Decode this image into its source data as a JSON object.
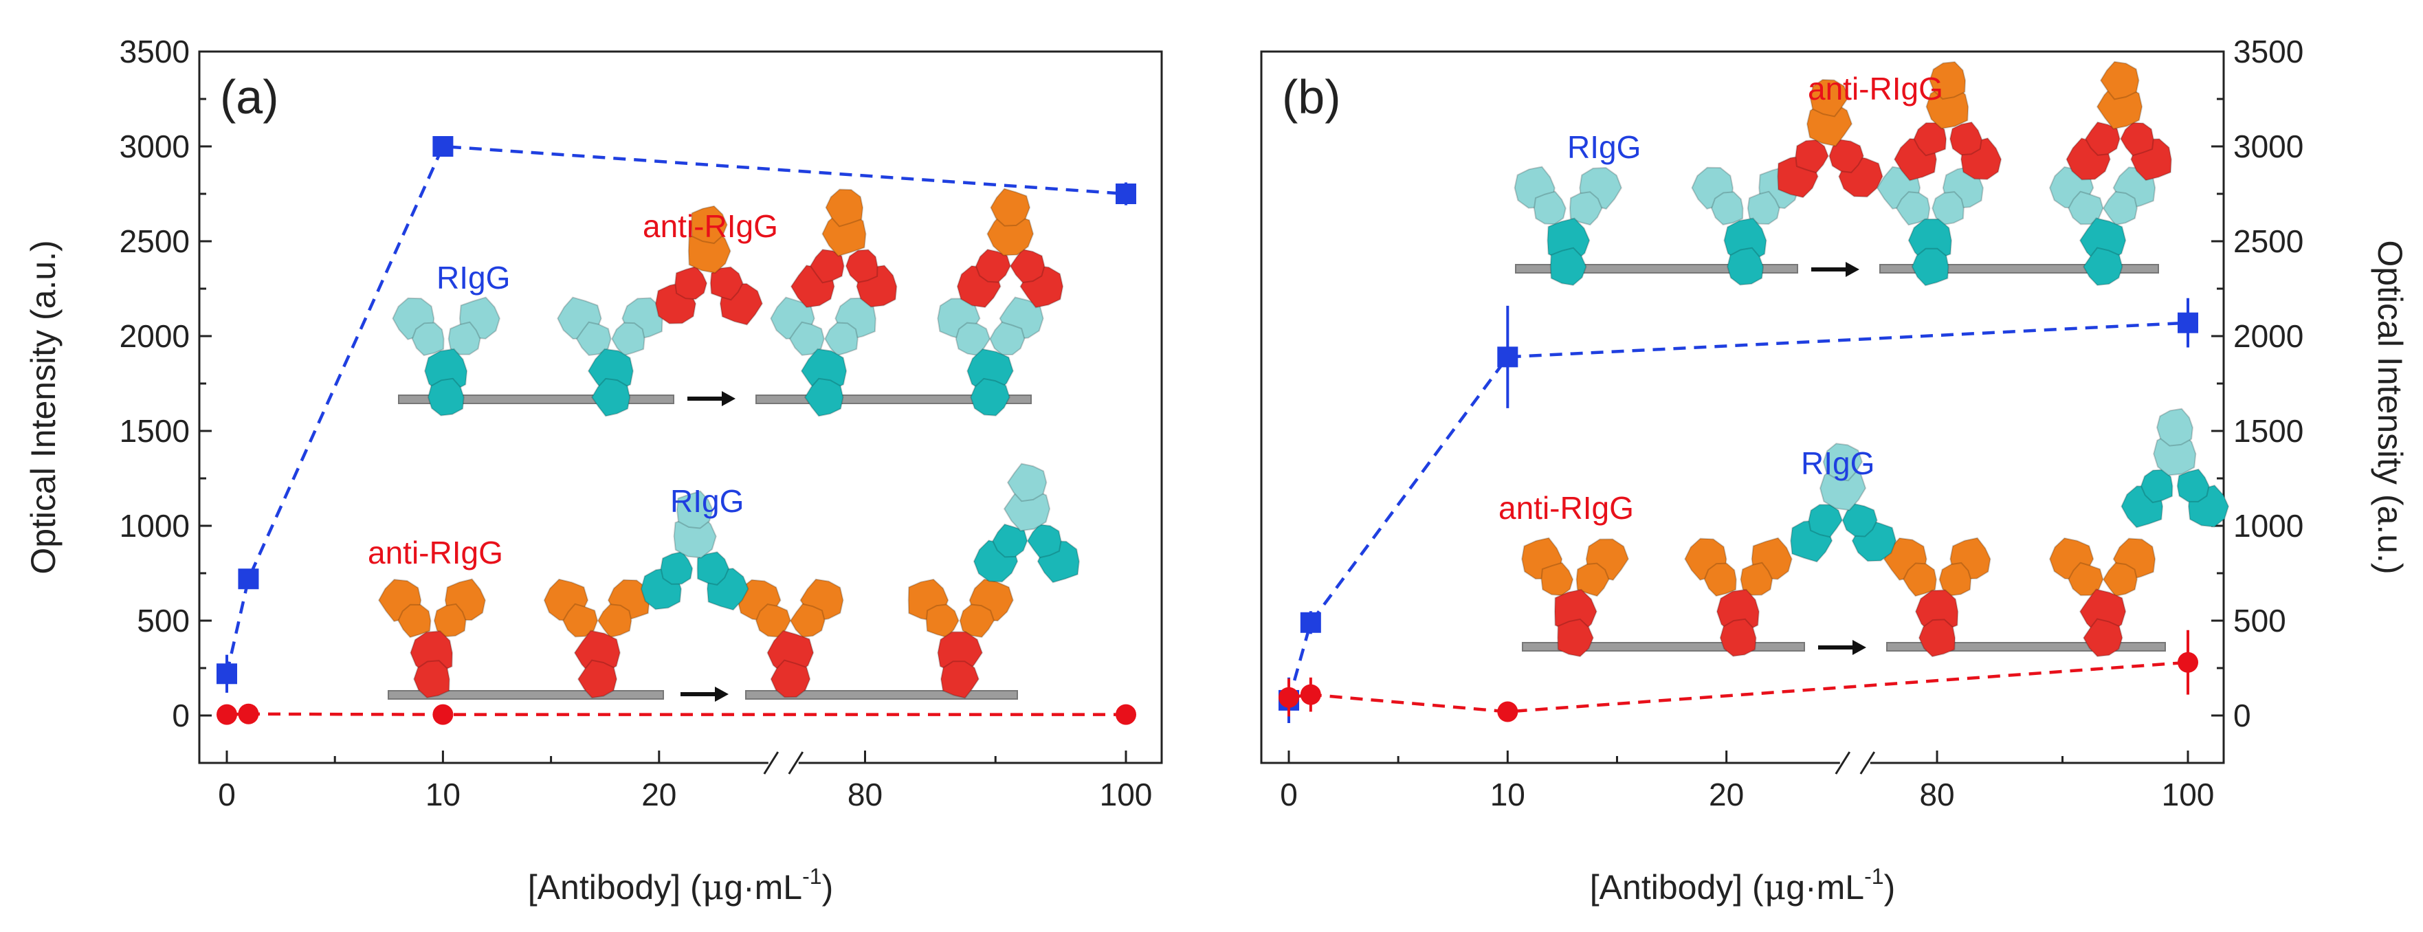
{
  "colors": {
    "blue": "#1f3fe0",
    "red": "#e8101a",
    "cyan": "#1ab7b7",
    "cyan_light": "#8fd6d6",
    "antibody_red": "#e6302a",
    "antibody_orange": "#ee7f1c",
    "substrate": "#9c9c9c"
  },
  "chart_data": [
    {
      "type": "scatter",
      "panel_label": "(a)",
      "xlabel_main": "[Antibody] (",
      "xlabel_mu": "μ",
      "xlabel_unit": "g·mL",
      "xlabel_sup": "-1",
      "xlabel_close": ")",
      "ylabel": "Optical Intensity (a.u.)",
      "x_axis": "broken",
      "x_break": [
        25,
        75
      ],
      "xticks": [
        0,
        10,
        20,
        80,
        100
      ],
      "ylim": [
        -250,
        3500
      ],
      "yticks": [
        0,
        500,
        1000,
        1500,
        2000,
        2500,
        3000,
        3500
      ],
      "axis_side": "left",
      "grid": false,
      "series": [
        {
          "color_key": "blue",
          "marker": "square",
          "line": "dashed",
          "x": [
            0,
            1,
            10,
            100
          ],
          "y": [
            220,
            720,
            3000,
            2750
          ],
          "err": [
            100,
            40,
            30,
            60
          ]
        },
        {
          "color_key": "red",
          "marker": "circle",
          "line": "dashed",
          "x": [
            0,
            1,
            10,
            100
          ],
          "y": [
            5,
            8,
            5,
            5
          ],
          "err": [
            10,
            10,
            10,
            10
          ]
        }
      ],
      "annotations": [
        {
          "text": "RIgG",
          "color_key": "blue"
        },
        {
          "text": "anti-RIgG",
          "color_key": "red"
        },
        {
          "text": "anti-RIgG",
          "color_key": "red"
        },
        {
          "text": "RIgG",
          "color_key": "blue"
        }
      ]
    },
    {
      "type": "scatter",
      "panel_label": "(b)",
      "xlabel_main": "[Antibody] (",
      "xlabel_mu": "μ",
      "xlabel_unit": "g·mL",
      "xlabel_sup": "-1",
      "xlabel_close": ")",
      "ylabel": "Optical Intensity (a.u.)",
      "x_axis": "broken",
      "x_break": [
        25,
        75
      ],
      "xticks": [
        0,
        10,
        20,
        80,
        100
      ],
      "ylim": [
        -250,
        3500
      ],
      "yticks": [
        0,
        500,
        1000,
        1500,
        2000,
        2500,
        3000,
        3500
      ],
      "axis_side": "right",
      "grid": false,
      "series": [
        {
          "color_key": "blue",
          "marker": "square",
          "line": "dashed",
          "x": [
            0,
            1,
            10,
            100
          ],
          "y": [
            80,
            490,
            1890,
            2070
          ],
          "err": [
            120,
            60,
            270,
            130
          ]
        },
        {
          "color_key": "red",
          "marker": "circle",
          "line": "dashed",
          "x": [
            0,
            1,
            10,
            100
          ],
          "y": [
            95,
            110,
            20,
            280
          ],
          "err": [
            100,
            90,
            20,
            170
          ]
        }
      ],
      "annotations": [
        {
          "text": "RIgG",
          "color_key": "blue"
        },
        {
          "text": "anti-RIgG",
          "color_key": "red"
        },
        {
          "text": "anti-RIgG",
          "color_key": "red"
        },
        {
          "text": "RIgG",
          "color_key": "blue"
        }
      ]
    }
  ]
}
